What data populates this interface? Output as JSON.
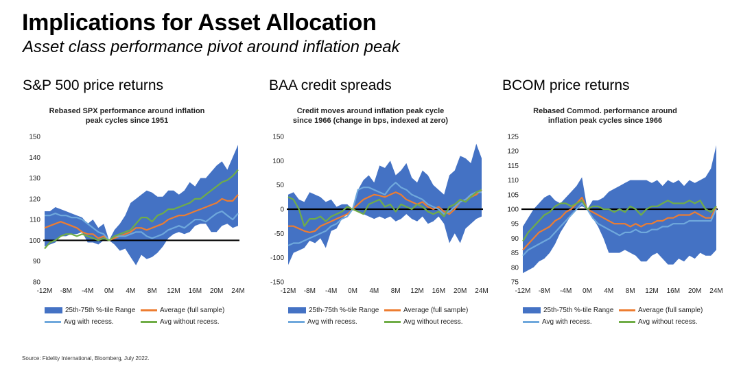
{
  "header": {
    "title": "Implications for Asset Allocation",
    "subtitle": "Asset class performance pivot around inflation peak"
  },
  "colors": {
    "range": "#4472C4",
    "average": "#ED7D31",
    "with_recession": "#6FA8DC",
    "without_recession": "#70AD47",
    "baseline": "#000000"
  },
  "legend": {
    "range": "25th-75th %-tile Range",
    "average": "Average (full sample)",
    "with_recession": "Avg with recess.",
    "without_recession": "Avg without recess."
  },
  "source": "Source: Fidelity International, Bloomberg, July 2022.",
  "panels": [
    {
      "heading": "S&P 500 price returns",
      "chart_title_lines": [
        "Rebased SPX performance around inflation",
        "peak cycles since 1951"
      ]
    },
    {
      "heading": "BAA credit spreads",
      "chart_title_lines": [
        "Credit moves around inflation peak cycle",
        "since 1966 (change in bps, indexed at zero)"
      ]
    },
    {
      "heading": "BCOM price returns",
      "chart_title_lines": [
        "Rebased Commod. performance around",
        "inflation peak cycles since 1966"
      ]
    }
  ],
  "chart_data": [
    {
      "type": "line",
      "x_labels": [
        "-12M",
        "-8M",
        "-4M",
        "0M",
        "4M",
        "8M",
        "12M",
        "16M",
        "20M",
        "24M"
      ],
      "x": [
        -12,
        -11,
        -10,
        -9,
        -8,
        -7,
        -6,
        -5,
        -4,
        -3,
        -2,
        -1,
        0,
        1,
        2,
        3,
        4,
        5,
        6,
        7,
        8,
        9,
        10,
        11,
        12,
        13,
        14,
        15,
        16,
        17,
        18,
        19,
        20,
        21,
        22,
        23,
        24
      ],
      "ylim": [
        80,
        150
      ],
      "yticks": [
        80,
        90,
        100,
        110,
        120,
        130,
        140,
        150
      ],
      "baseline": 100,
      "band_upper": [
        114,
        114,
        116,
        115,
        114,
        113,
        112,
        111,
        108,
        110,
        106,
        108,
        100,
        105,
        108,
        112,
        118,
        120,
        122,
        124,
        123,
        121,
        121,
        124,
        124,
        122,
        124,
        128,
        126,
        130,
        130,
        133,
        136,
        138,
        134,
        140,
        146
      ],
      "band_lower": [
        97,
        98,
        99,
        102,
        102,
        103,
        103,
        104,
        99,
        99,
        98,
        100,
        100,
        98,
        95,
        96,
        92,
        88,
        93,
        91,
        92,
        94,
        97,
        101,
        103,
        104,
        103,
        104,
        107,
        108,
        108,
        104,
        104,
        107,
        108,
        106,
        107
      ],
      "series": [
        {
          "name": "Average (full sample)",
          "values": [
            106,
            107,
            108,
            109,
            108,
            107,
            106,
            104,
            103,
            103,
            101,
            102,
            100,
            101,
            102,
            103,
            104,
            106,
            106,
            105,
            106,
            107,
            108,
            110,
            111,
            112,
            112,
            113,
            114,
            115,
            116,
            117,
            118,
            120,
            119,
            119,
            122
          ]
        },
        {
          "name": "Avg with recess.",
          "values": [
            112,
            112,
            113,
            112,
            112,
            111,
            111,
            110,
            108,
            106,
            104,
            103,
            100,
            102,
            102,
            102,
            103,
            104,
            104,
            102,
            101,
            102,
            103,
            105,
            106,
            107,
            106,
            108,
            110,
            110,
            109,
            111,
            113,
            114,
            112,
            110,
            113
          ]
        },
        {
          "name": "Avg without recess.",
          "values": [
            96,
            99,
            100,
            102,
            103,
            103,
            102,
            103,
            102,
            101,
            100,
            101,
            100,
            102,
            103,
            104,
            105,
            108,
            111,
            111,
            109,
            112,
            113,
            115,
            115,
            116,
            117,
            118,
            120,
            120,
            122,
            124,
            126,
            128,
            129,
            131,
            134
          ]
        }
      ]
    },
    {
      "type": "line",
      "x_labels": [
        "-12M",
        "-8M",
        "-4M",
        "0M",
        "4M",
        "8M",
        "12M",
        "16M",
        "20M",
        "24M"
      ],
      "x": [
        -12,
        -11,
        -10,
        -9,
        -8,
        -7,
        -6,
        -5,
        -4,
        -3,
        -2,
        -1,
        0,
        1,
        2,
        3,
        4,
        5,
        6,
        7,
        8,
        9,
        10,
        11,
        12,
        13,
        14,
        15,
        16,
        17,
        18,
        19,
        20,
        21,
        22,
        23,
        24
      ],
      "ylim": [
        -150,
        150
      ],
      "yticks": [
        -150,
        -100,
        -50,
        0,
        50,
        100,
        150
      ],
      "baseline": 0,
      "band_upper": [
        30,
        35,
        20,
        15,
        35,
        30,
        25,
        15,
        20,
        5,
        10,
        10,
        0,
        40,
        60,
        70,
        55,
        90,
        85,
        100,
        70,
        80,
        95,
        65,
        55,
        80,
        70,
        50,
        40,
        30,
        70,
        80,
        110,
        105,
        95,
        135,
        105
      ],
      "band_lower": [
        -115,
        -90,
        -85,
        -80,
        -65,
        -70,
        -60,
        -80,
        -45,
        -40,
        -20,
        -10,
        0,
        -5,
        -10,
        -15,
        -20,
        -15,
        -20,
        -15,
        -25,
        -20,
        -10,
        -20,
        -25,
        -15,
        -30,
        -25,
        -15,
        -30,
        -70,
        -50,
        -70,
        -40,
        -30,
        -20,
        -15
      ],
      "series": [
        {
          "name": "Average (full sample)",
          "values": [
            -35,
            -35,
            -40,
            -45,
            -48,
            -45,
            -35,
            -30,
            -25,
            -20,
            -15,
            -10,
            0,
            10,
            20,
            25,
            30,
            28,
            25,
            30,
            35,
            30,
            20,
            15,
            10,
            15,
            5,
            0,
            5,
            -5,
            -10,
            0,
            15,
            20,
            25,
            30,
            40
          ]
        },
        {
          "name": "Avg with recess.",
          "values": [
            -75,
            -70,
            -70,
            -65,
            -60,
            -55,
            -50,
            -45,
            -35,
            -30,
            -20,
            -15,
            0,
            40,
            45,
            45,
            40,
            35,
            30,
            45,
            55,
            45,
            40,
            30,
            25,
            20,
            10,
            5,
            0,
            -10,
            -5,
            5,
            15,
            20,
            30,
            35,
            35
          ]
        },
        {
          "name": "Avg without recess.",
          "values": [
            25,
            20,
            0,
            -35,
            -20,
            -20,
            -15,
            -25,
            -15,
            -10,
            -5,
            5,
            0,
            -5,
            -10,
            10,
            15,
            20,
            5,
            10,
            -5,
            10,
            5,
            0,
            10,
            5,
            -5,
            -10,
            -5,
            -15,
            5,
            10,
            20,
            15,
            25,
            35,
            40
          ]
        }
      ]
    },
    {
      "type": "line",
      "x_labels": [
        "-12M",
        "-8M",
        "-4M",
        "0M",
        "4M",
        "8M",
        "12M",
        "16M",
        "20M",
        "24M"
      ],
      "x": [
        -12,
        -11,
        -10,
        -9,
        -8,
        -7,
        -6,
        -5,
        -4,
        -3,
        -2,
        -1,
        0,
        1,
        2,
        3,
        4,
        5,
        6,
        7,
        8,
        9,
        10,
        11,
        12,
        13,
        14,
        15,
        16,
        17,
        18,
        19,
        20,
        21,
        22,
        23,
        24
      ],
      "ylim": [
        75,
        125
      ],
      "yticks": [
        75,
        80,
        85,
        90,
        95,
        100,
        105,
        110,
        115,
        120,
        125
      ],
      "baseline": 100,
      "band_upper": [
        94,
        97,
        100,
        102,
        104,
        105,
        103,
        102,
        104,
        106,
        108,
        111,
        100,
        103,
        103,
        104,
        106,
        107,
        108,
        109,
        110,
        110,
        110,
        110,
        109,
        110,
        108,
        110,
        109,
        110,
        108,
        110,
        109,
        110,
        111,
        114,
        122
      ],
      "band_lower": [
        78,
        79,
        80,
        82,
        83,
        85,
        88,
        92,
        95,
        98,
        100,
        101,
        100,
        97,
        94,
        90,
        85,
        85,
        85,
        86,
        85,
        84,
        82,
        82,
        84,
        85,
        83,
        81,
        81,
        83,
        82,
        84,
        83,
        85,
        84,
        84,
        86
      ],
      "series": [
        {
          "name": "Average (full sample)",
          "values": [
            86,
            88,
            90,
            92,
            93,
            94,
            96,
            97,
            99,
            100,
            102,
            104,
            100,
            99,
            98,
            97,
            96,
            95,
            95,
            95,
            94,
            95,
            94,
            95,
            95,
            96,
            96,
            97,
            97,
            98,
            98,
            98,
            99,
            98,
            97,
            97,
            101
          ]
        },
        {
          "name": "Avg with recess.",
          "values": [
            84,
            86,
            87,
            88,
            89,
            90,
            92,
            94,
            96,
            98,
            100,
            102,
            100,
            97,
            95,
            94,
            93,
            92,
            91,
            92,
            92,
            93,
            92,
            92,
            93,
            93,
            94,
            94,
            95,
            95,
            95,
            96,
            96,
            96,
            96,
            96,
            100
          ]
        },
        {
          "name": "Avg without recess.",
          "values": [
            89,
            92,
            94,
            96,
            98,
            99,
            101,
            102,
            102,
            101,
            102,
            103,
            100,
            101,
            101,
            100,
            100,
            99,
            100,
            99,
            101,
            100,
            98,
            100,
            101,
            101,
            102,
            103,
            102,
            102,
            102,
            103,
            102,
            103,
            100,
            99,
            101
          ]
        }
      ]
    }
  ]
}
